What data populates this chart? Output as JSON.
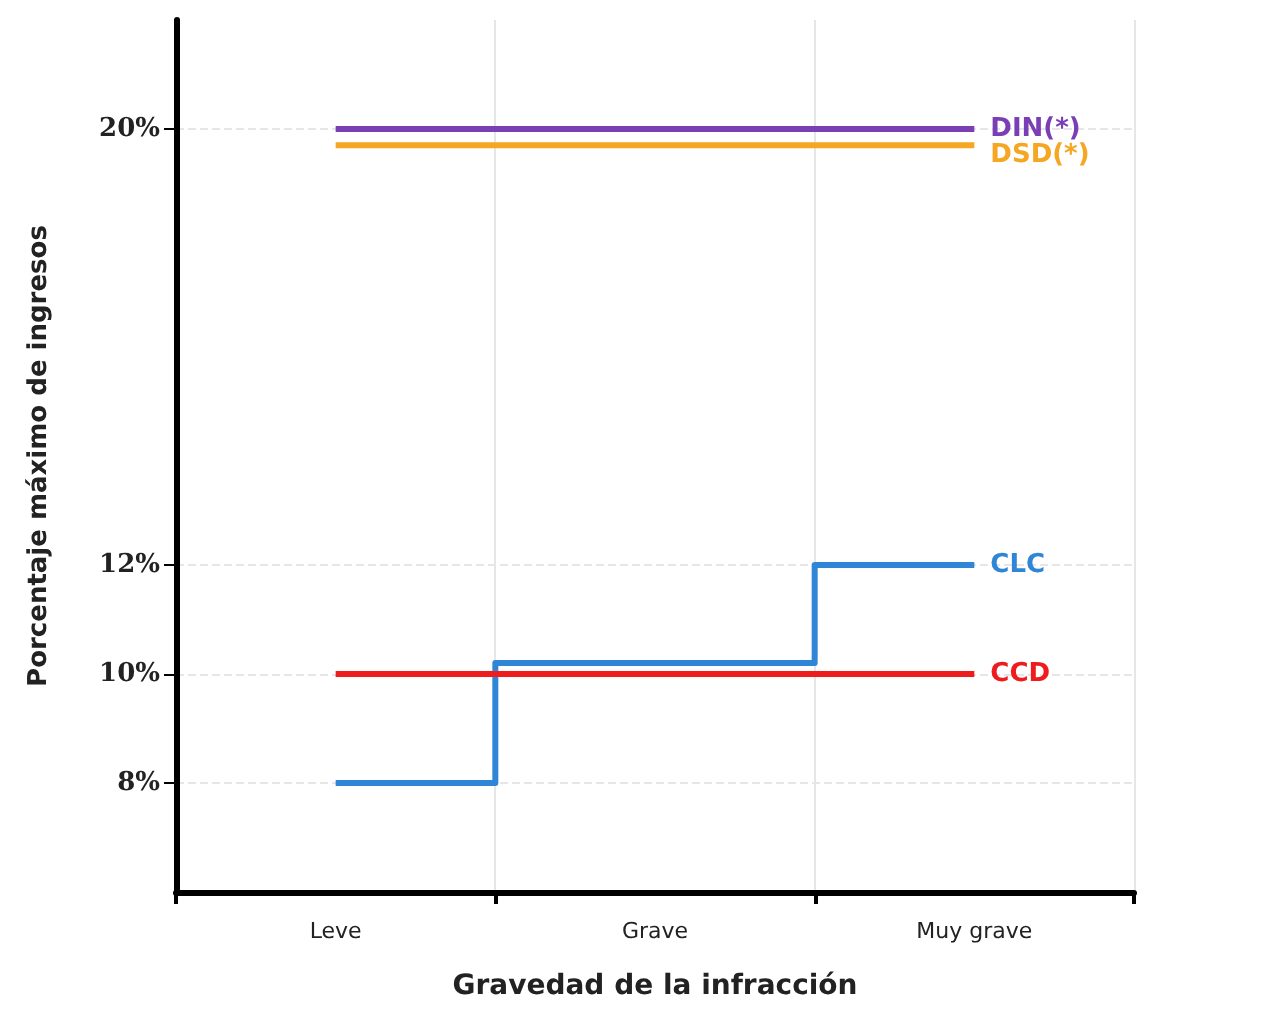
{
  "chart_data": {
    "type": "step",
    "xlabel": "Gravedad de la infracción",
    "ylabel": "Porcentaje máximo de ingresos",
    "categories": [
      "Leve",
      "Grave",
      "Muy grave"
    ],
    "series": [
      {
        "name": "DIN(*)",
        "color": "#7b3fb5",
        "values": [
          20,
          20,
          20
        ]
      },
      {
        "name": "DSD(*)",
        "color": "#f5a623",
        "values": [
          19.7,
          19.7,
          19.7
        ]
      },
      {
        "name": "CLC",
        "color": "#2f86d6",
        "values": [
          8,
          10.2,
          12
        ]
      },
      {
        "name": "CCD",
        "color": "#ee1c1c",
        "values": [
          10,
          10,
          10
        ]
      }
    ],
    "ylim": [
      6,
      22
    ],
    "yticks": [
      {
        "value": 8,
        "label": "8%"
      },
      {
        "value": 10,
        "label": "10%"
      },
      {
        "value": 12,
        "label": "12%"
      },
      {
        "value": 20,
        "label": "20%"
      }
    ],
    "grid": true,
    "legend": false,
    "marker": "none",
    "line_style": "solid"
  }
}
